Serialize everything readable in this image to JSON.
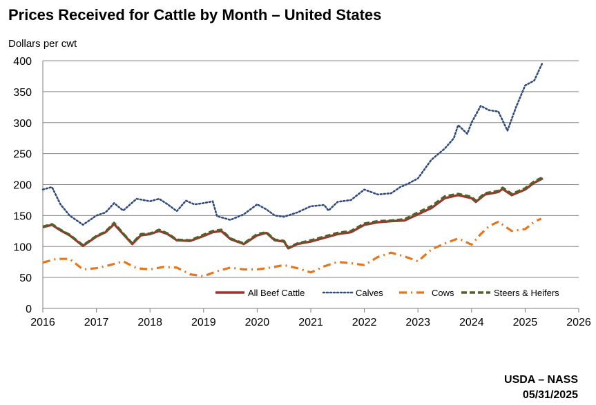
{
  "chart_data": {
    "type": "line",
    "title": "Prices Received for Cattle by Month – United States",
    "ylabel": "Dollars per cwt",
    "xlabel": "",
    "ylim": [
      0,
      400
    ],
    "xlim": [
      2016,
      2026
    ],
    "yticks": [
      "0",
      "50",
      "100",
      "150",
      "200",
      "250",
      "300",
      "350",
      "400"
    ],
    "xticks": [
      "2016",
      "2017",
      "2018",
      "2019",
      "2020",
      "2021",
      "2022",
      "2023",
      "2024",
      "2025",
      "2026"
    ],
    "grid": true,
    "legend_position": "bottom-right",
    "series": [
      {
        "name": "All Beef Cattle",
        "color": "#A4322E",
        "dash": "solid",
        "points": [
          [
            2016.0,
            131
          ],
          [
            2016.17,
            135
          ],
          [
            2016.33,
            126
          ],
          [
            2016.5,
            118
          ],
          [
            2016.75,
            101
          ],
          [
            2017.0,
            116
          ],
          [
            2017.17,
            123
          ],
          [
            2017.33,
            136
          ],
          [
            2017.5,
            120
          ],
          [
            2017.67,
            104
          ],
          [
            2017.83,
            118
          ],
          [
            2018.0,
            120
          ],
          [
            2018.17,
            125
          ],
          [
            2018.33,
            120
          ],
          [
            2018.5,
            110
          ],
          [
            2018.75,
            109
          ],
          [
            2019.0,
            117
          ],
          [
            2019.17,
            123
          ],
          [
            2019.33,
            125
          ],
          [
            2019.5,
            112
          ],
          [
            2019.75,
            104
          ],
          [
            2020.0,
            118
          ],
          [
            2020.17,
            122
          ],
          [
            2020.33,
            110
          ],
          [
            2020.5,
            108
          ],
          [
            2020.58,
            97
          ],
          [
            2020.75,
            104
          ],
          [
            2021.0,
            108
          ],
          [
            2021.25,
            114
          ],
          [
            2021.5,
            120
          ],
          [
            2021.75,
            123
          ],
          [
            2022.0,
            135
          ],
          [
            2022.25,
            139
          ],
          [
            2022.5,
            141
          ],
          [
            2022.75,
            142
          ],
          [
            2023.0,
            152
          ],
          [
            2023.25,
            162
          ],
          [
            2023.5,
            178
          ],
          [
            2023.75,
            183
          ],
          [
            2024.0,
            178
          ],
          [
            2024.08,
            172
          ],
          [
            2024.25,
            184
          ],
          [
            2024.5,
            188
          ],
          [
            2024.58,
            193
          ],
          [
            2024.75,
            183
          ],
          [
            2025.0,
            192
          ],
          [
            2025.17,
            203
          ],
          [
            2025.33,
            210
          ]
        ]
      },
      {
        "name": "Calves",
        "color": "#2F4B7C",
        "dash": "dotted",
        "points": [
          [
            2016.0,
            192
          ],
          [
            2016.17,
            196
          ],
          [
            2016.33,
            168
          ],
          [
            2016.5,
            150
          ],
          [
            2016.75,
            135
          ],
          [
            2017.0,
            150
          ],
          [
            2017.17,
            155
          ],
          [
            2017.33,
            170
          ],
          [
            2017.5,
            158
          ],
          [
            2017.75,
            177
          ],
          [
            2018.0,
            173
          ],
          [
            2018.17,
            177
          ],
          [
            2018.33,
            168
          ],
          [
            2018.5,
            157
          ],
          [
            2018.67,
            174
          ],
          [
            2018.83,
            168
          ],
          [
            2019.0,
            170
          ],
          [
            2019.17,
            173
          ],
          [
            2019.25,
            149
          ],
          [
            2019.5,
            143
          ],
          [
            2019.75,
            152
          ],
          [
            2020.0,
            168
          ],
          [
            2020.17,
            160
          ],
          [
            2020.33,
            150
          ],
          [
            2020.5,
            148
          ],
          [
            2020.75,
            155
          ],
          [
            2021.0,
            165
          ],
          [
            2021.25,
            167
          ],
          [
            2021.33,
            158
          ],
          [
            2021.5,
            172
          ],
          [
            2021.75,
            175
          ],
          [
            2022.0,
            192
          ],
          [
            2022.25,
            184
          ],
          [
            2022.5,
            186
          ],
          [
            2022.67,
            196
          ],
          [
            2022.83,
            202
          ],
          [
            2023.0,
            210
          ],
          [
            2023.25,
            240
          ],
          [
            2023.5,
            258
          ],
          [
            2023.67,
            275
          ],
          [
            2023.75,
            296
          ],
          [
            2023.92,
            282
          ],
          [
            2024.0,
            300
          ],
          [
            2024.17,
            327
          ],
          [
            2024.33,
            320
          ],
          [
            2024.5,
            318
          ],
          [
            2024.67,
            287
          ],
          [
            2024.83,
            325
          ],
          [
            2025.0,
            360
          ],
          [
            2025.17,
            368
          ],
          [
            2025.33,
            398
          ]
        ]
      },
      {
        "name": "Cows",
        "color": "#E8751A",
        "dash": "dashdot",
        "points": [
          [
            2016.0,
            74
          ],
          [
            2016.25,
            80
          ],
          [
            2016.5,
            80
          ],
          [
            2016.75,
            63
          ],
          [
            2017.0,
            65
          ],
          [
            2017.25,
            70
          ],
          [
            2017.5,
            76
          ],
          [
            2017.75,
            65
          ],
          [
            2018.0,
            63
          ],
          [
            2018.25,
            67
          ],
          [
            2018.5,
            66
          ],
          [
            2018.75,
            55
          ],
          [
            2019.0,
            52
          ],
          [
            2019.25,
            60
          ],
          [
            2019.5,
            66
          ],
          [
            2019.75,
            63
          ],
          [
            2020.0,
            63
          ],
          [
            2020.25,
            66
          ],
          [
            2020.5,
            70
          ],
          [
            2020.75,
            65
          ],
          [
            2021.0,
            58
          ],
          [
            2021.25,
            68
          ],
          [
            2021.5,
            75
          ],
          [
            2021.75,
            73
          ],
          [
            2022.0,
            70
          ],
          [
            2022.25,
            83
          ],
          [
            2022.5,
            90
          ],
          [
            2022.75,
            84
          ],
          [
            2023.0,
            76
          ],
          [
            2023.25,
            95
          ],
          [
            2023.5,
            105
          ],
          [
            2023.75,
            113
          ],
          [
            2024.0,
            103
          ],
          [
            2024.17,
            120
          ],
          [
            2024.33,
            133
          ],
          [
            2024.5,
            140
          ],
          [
            2024.75,
            125
          ],
          [
            2025.0,
            128
          ],
          [
            2025.17,
            140
          ],
          [
            2025.3,
            145
          ]
        ]
      },
      {
        "name": "Steers & Heifers",
        "color": "#4F6228",
        "dash": "dashed",
        "points": [
          [
            2016.0,
            132
          ],
          [
            2016.17,
            136
          ],
          [
            2016.33,
            127
          ],
          [
            2016.5,
            119
          ],
          [
            2016.75,
            102
          ],
          [
            2017.0,
            117
          ],
          [
            2017.17,
            124
          ],
          [
            2017.33,
            138
          ],
          [
            2017.5,
            121
          ],
          [
            2017.67,
            105
          ],
          [
            2017.83,
            120
          ],
          [
            2018.0,
            121
          ],
          [
            2018.17,
            127
          ],
          [
            2018.33,
            121
          ],
          [
            2018.5,
            111
          ],
          [
            2018.75,
            110
          ],
          [
            2019.0,
            119
          ],
          [
            2019.17,
            125
          ],
          [
            2019.33,
            127
          ],
          [
            2019.5,
            113
          ],
          [
            2019.75,
            105
          ],
          [
            2020.0,
            120
          ],
          [
            2020.17,
            123
          ],
          [
            2020.33,
            111
          ],
          [
            2020.5,
            109
          ],
          [
            2020.58,
            98
          ],
          [
            2020.75,
            105
          ],
          [
            2021.0,
            110
          ],
          [
            2021.25,
            116
          ],
          [
            2021.5,
            122
          ],
          [
            2021.75,
            125
          ],
          [
            2022.0,
            137
          ],
          [
            2022.25,
            141
          ],
          [
            2022.5,
            142
          ],
          [
            2022.75,
            144
          ],
          [
            2023.0,
            155
          ],
          [
            2023.25,
            165
          ],
          [
            2023.5,
            181
          ],
          [
            2023.75,
            185
          ],
          [
            2024.0,
            180
          ],
          [
            2024.08,
            174
          ],
          [
            2024.25,
            186
          ],
          [
            2024.5,
            190
          ],
          [
            2024.58,
            195
          ],
          [
            2024.75,
            185
          ],
          [
            2025.0,
            194
          ],
          [
            2025.17,
            205
          ],
          [
            2025.33,
            212
          ]
        ]
      }
    ]
  },
  "footer": {
    "agency": "USDA – NASS",
    "date": "05/31/2025"
  }
}
